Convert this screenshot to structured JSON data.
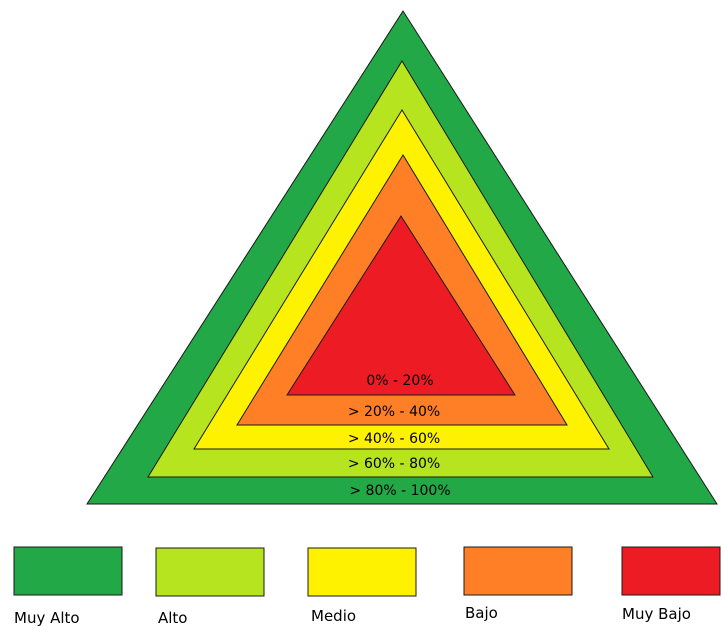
{
  "bands": [
    {
      "key": "muy_alto",
      "range_label": "> 80% - 100%",
      "color": "#22A846"
    },
    {
      "key": "alto",
      "range_label": "> 60% - 80%",
      "color": "#B6E41E"
    },
    {
      "key": "medio",
      "range_label": "> 40% - 60%",
      "color": "#FFF200"
    },
    {
      "key": "bajo",
      "range_label": "> 20% - 40%",
      "color": "#FF7F27"
    },
    {
      "key": "muy_bajo",
      "range_label": "0% - 20%",
      "color": "#ED1C24"
    }
  ],
  "legend": [
    {
      "key": "muy_alto",
      "label": "Muy Alto",
      "color": "#22A846"
    },
    {
      "key": "alto",
      "label": "Alto",
      "color": "#B6E41E"
    },
    {
      "key": "medio",
      "label": "Medio",
      "color": "#FFF200"
    },
    {
      "key": "bajo",
      "label": "Bajo",
      "color": "#FF7F27"
    },
    {
      "key": "muy_bajo",
      "label": "Muy Bajo",
      "color": "#ED1C24"
    }
  ]
}
